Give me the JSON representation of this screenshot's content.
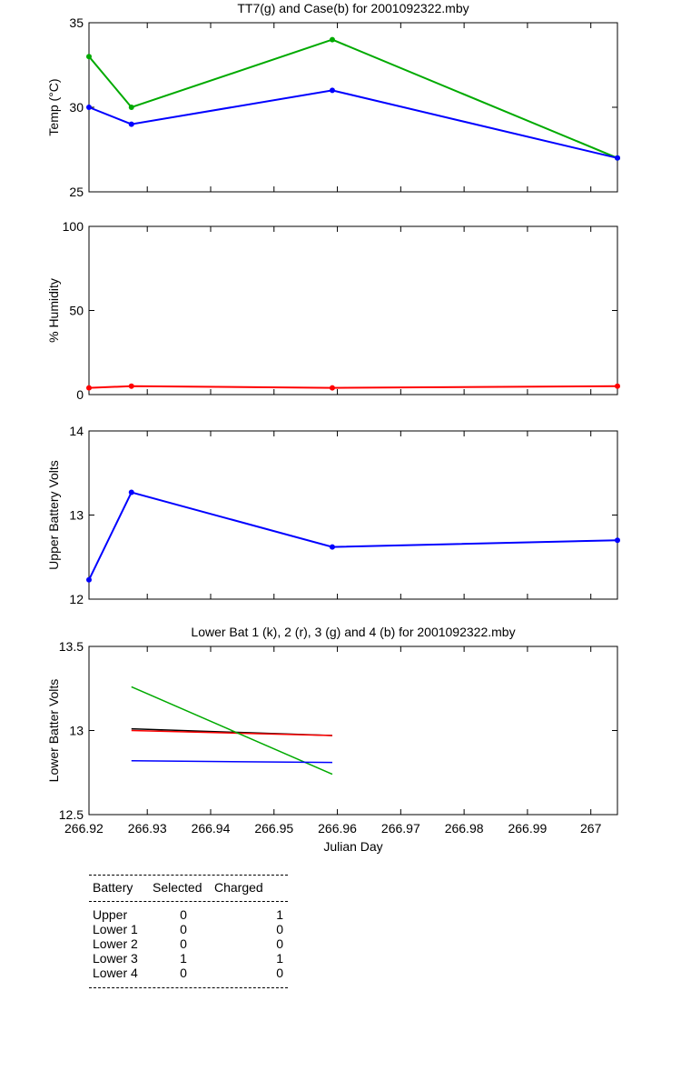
{
  "chart_data": [
    {
      "type": "line",
      "title": "TT7(g) and Case(b) for 2001092322.mby",
      "xlabel": "",
      "ylabel": "Temp  (°C)",
      "xlim": [
        266.9208,
        267.0042
      ],
      "ylim": [
        25,
        35
      ],
      "yticks": [
        25,
        30,
        35
      ],
      "series": [
        {
          "color": "#00aa00",
          "x": [
            266.9208,
            266.9275,
            266.9592,
            267.0042
          ],
          "y": [
            33,
            30,
            34,
            27
          ]
        },
        {
          "color": "#0000ff",
          "x": [
            266.9208,
            266.9275,
            266.9592,
            267.0042
          ],
          "y": [
            30,
            29,
            31,
            27
          ]
        }
      ]
    },
    {
      "type": "line",
      "title": "",
      "xlabel": "",
      "ylabel": "% Humidity",
      "xlim": [
        266.9208,
        267.0042
      ],
      "ylim": [
        0,
        100
      ],
      "yticks": [
        0,
        50,
        100
      ],
      "series": [
        {
          "color": "#ff0000",
          "x": [
            266.9208,
            266.9275,
            266.9592,
            267.0042
          ],
          "y": [
            4,
            5,
            4,
            5
          ]
        }
      ]
    },
    {
      "type": "line",
      "title": "",
      "xlabel": "",
      "ylabel": "Upper Battery Volts",
      "xlim": [
        266.9208,
        267.0042
      ],
      "ylim": [
        12,
        14
      ],
      "yticks": [
        12,
        13,
        14
      ],
      "series": [
        {
          "color": "#0000ff",
          "x": [
            266.9208,
            266.9275,
            266.9592,
            267.0042
          ],
          "y": [
            12.23,
            13.27,
            12.62,
            12.7
          ]
        }
      ]
    },
    {
      "type": "line",
      "title": "Lower Bat 1 (k), 2 (r), 3 (g) and 4 (b) for 2001092322.mby",
      "xlabel": "Julian Day",
      "ylabel": "Lower Batter Volts",
      "xlim": [
        266.9208,
        267.0042
      ],
      "ylim": [
        12.5,
        13.5
      ],
      "yticks": [
        12.5,
        13,
        13.5
      ],
      "xticks": [
        266.92,
        266.93,
        266.94,
        266.95,
        266.96,
        266.97,
        266.98,
        266.99,
        267
      ],
      "xticklabels": [
        "266.92",
        "266.93",
        "266.94",
        "266.95",
        "266.96",
        "266.97",
        "266.98",
        "266.99",
        "267"
      ],
      "series": [
        {
          "color": "#000000",
          "x": [
            266.9275,
            266.9592
          ],
          "y": [
            13.01,
            12.97
          ]
        },
        {
          "color": "#ff0000",
          "x": [
            266.9275,
            266.9592
          ],
          "y": [
            13.0,
            12.97
          ]
        },
        {
          "color": "#00aa00",
          "x": [
            266.9275,
            266.9592
          ],
          "y": [
            13.26,
            12.74
          ]
        },
        {
          "color": "#0000ff",
          "x": [
            266.9275,
            266.9592
          ],
          "y": [
            12.82,
            12.81
          ]
        }
      ]
    }
  ],
  "battery_table": {
    "headers": [
      "Battery",
      "Selected",
      "Charged"
    ],
    "rows": [
      [
        "Upper",
        "0",
        "1"
      ],
      [
        "Lower 1",
        "0",
        "0"
      ],
      [
        "Lower 2",
        "0",
        "0"
      ],
      [
        "Lower 3",
        "1",
        "1"
      ],
      [
        "Lower 4",
        "0",
        "0"
      ]
    ]
  }
}
